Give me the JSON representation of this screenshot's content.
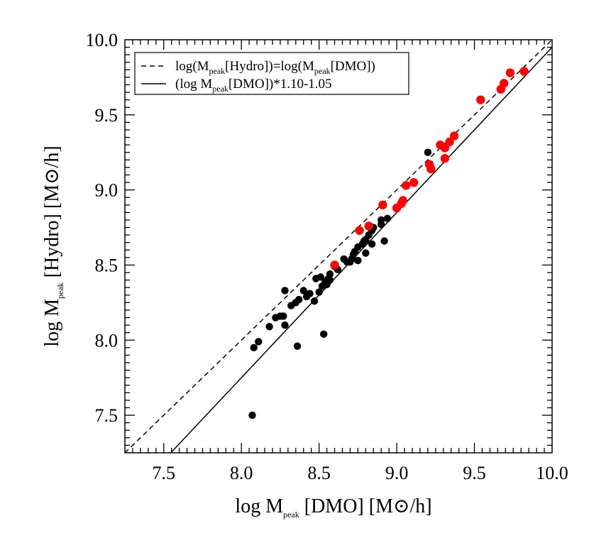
{
  "chart_data": {
    "type": "scatter",
    "xlim": [
      7.25,
      10.0
    ],
    "ylim": [
      7.25,
      10.0
    ],
    "xticks": [
      "7.5",
      "8.0",
      "8.5",
      "9.0",
      "9.5",
      "10.0"
    ],
    "yticks": [
      "7.5",
      "8.0",
      "8.5",
      "9.0",
      "9.5",
      "10.0"
    ],
    "xlabel": {
      "prefix": "log M",
      "sub": "peak",
      "suffix": " [DMO] [M",
      "symbol": "⊙",
      "tail": "/h]"
    },
    "ylabel": {
      "prefix": "log M",
      "sub": "peak",
      "suffix": " [Hydro] [M",
      "symbol": "⊙",
      "tail": "/h]"
    },
    "legend": {
      "position": "top-left",
      "entries": [
        {
          "style": "dashed",
          "parts": [
            "log(M",
            "peak",
            "[Hydro])=log(M",
            "peak",
            "[DMO])"
          ]
        },
        {
          "style": "solid",
          "parts": [
            "(log M",
            "peak",
            "[DMO])*1.10-1.05"
          ]
        }
      ]
    },
    "lines": [
      {
        "style": "dashed",
        "slope": 1.0,
        "intercept": 0.0
      },
      {
        "style": "solid",
        "slope": 1.1,
        "intercept": -1.05
      }
    ],
    "colors": {
      "black_series": "#000000",
      "red_series": "#ff0000"
    },
    "series": [
      {
        "color": "black",
        "points": [
          [
            8.07,
            7.5
          ],
          [
            8.08,
            7.95
          ],
          [
            8.11,
            7.99
          ],
          [
            8.18,
            8.09
          ],
          [
            8.22,
            8.15
          ],
          [
            8.25,
            8.16
          ],
          [
            8.27,
            8.16
          ],
          [
            8.28,
            8.1
          ],
          [
            8.28,
            8.33
          ],
          [
            8.32,
            8.23
          ],
          [
            8.35,
            8.25
          ],
          [
            8.36,
            7.96
          ],
          [
            8.37,
            8.27
          ],
          [
            8.4,
            8.33
          ],
          [
            8.42,
            8.29
          ],
          [
            8.44,
            8.31
          ],
          [
            8.47,
            8.26
          ],
          [
            8.48,
            8.41
          ],
          [
            8.5,
            8.32
          ],
          [
            8.51,
            8.42
          ],
          [
            8.52,
            8.36
          ],
          [
            8.53,
            8.04
          ],
          [
            8.54,
            8.39
          ],
          [
            8.55,
            8.37
          ],
          [
            8.56,
            8.41
          ],
          [
            8.57,
            8.4
          ],
          [
            8.57,
            8.44
          ],
          [
            8.6,
            8.49
          ],
          [
            8.62,
            8.47
          ],
          [
            8.66,
            8.54
          ],
          [
            8.68,
            8.52
          ],
          [
            8.7,
            8.52
          ],
          [
            8.71,
            8.54
          ],
          [
            8.72,
            8.57
          ],
          [
            8.73,
            8.59
          ],
          [
            8.75,
            8.53
          ],
          [
            8.75,
            8.62
          ],
          [
            8.78,
            8.64
          ],
          [
            8.79,
            8.66
          ],
          [
            8.8,
            8.67
          ],
          [
            8.8,
            8.58
          ],
          [
            8.82,
            8.7
          ],
          [
            8.84,
            8.64
          ],
          [
            8.84,
            8.73
          ],
          [
            8.85,
            8.75
          ],
          [
            8.9,
            8.77
          ],
          [
            8.9,
            8.8
          ],
          [
            8.92,
            8.66
          ],
          [
            8.94,
            8.81
          ],
          [
            9.2,
            9.25
          ]
        ]
      },
      {
        "color": "red",
        "points": [
          [
            8.6,
            8.5
          ],
          [
            8.76,
            8.73
          ],
          [
            8.82,
            8.76
          ],
          [
            8.91,
            8.9
          ],
          [
            9.0,
            8.88
          ],
          [
            9.03,
            8.91
          ],
          [
            9.04,
            8.93
          ],
          [
            9.06,
            9.03
          ],
          [
            9.11,
            9.05
          ],
          [
            9.21,
            9.17
          ],
          [
            9.22,
            9.14
          ],
          [
            9.28,
            9.3
          ],
          [
            9.31,
            9.28
          ],
          [
            9.31,
            9.21
          ],
          [
            9.34,
            9.32
          ],
          [
            9.37,
            9.36
          ],
          [
            9.54,
            9.6
          ],
          [
            9.67,
            9.67
          ],
          [
            9.69,
            9.71
          ],
          [
            9.73,
            9.78
          ],
          [
            9.82,
            9.79
          ]
        ]
      }
    ]
  }
}
